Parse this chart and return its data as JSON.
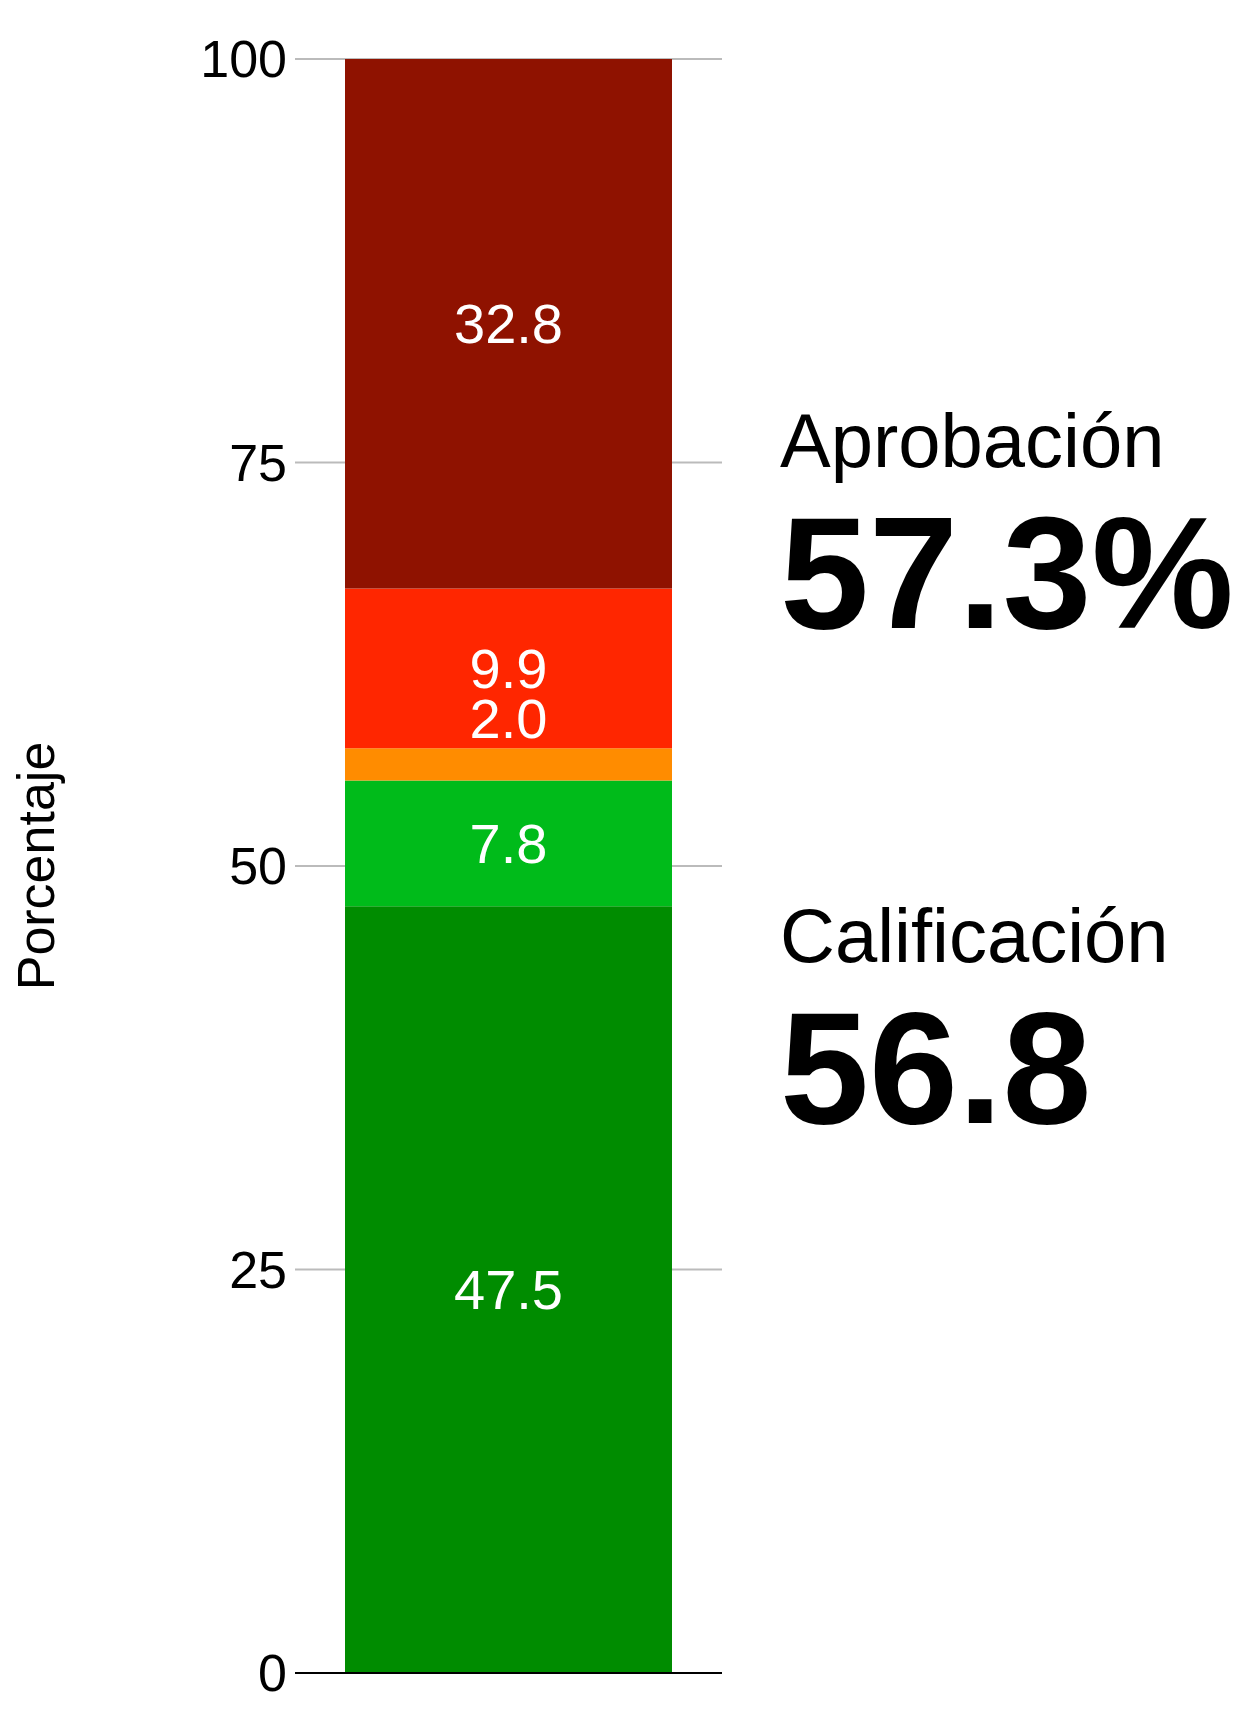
{
  "chart_data": {
    "type": "bar",
    "stacked": true,
    "ylabel": "Porcentaje",
    "categories": [
      null
    ],
    "series": [
      {
        "color": "#008c00",
        "values": [
          47.5
        ],
        "value_labels": [
          "47.5"
        ]
      },
      {
        "color": "#00bb1a",
        "values": [
          7.8
        ],
        "value_labels": [
          "7.8"
        ]
      },
      {
        "color": "#ff8c00",
        "values": [
          2.0
        ],
        "value_labels": [
          "2.0"
        ]
      },
      {
        "color": "#ff2600",
        "values": [
          9.9
        ],
        "value_labels": [
          "9.9"
        ]
      },
      {
        "color": "#8f1200",
        "values": [
          32.8
        ],
        "value_labels": [
          "32.8"
        ]
      }
    ],
    "ylim": [
      0,
      100
    ],
    "yticks": [
      0,
      25,
      50,
      75,
      100
    ],
    "grid": "y",
    "annotations": [
      "Aprobación",
      "57.3%",
      "Calificación",
      "56.8"
    ]
  }
}
